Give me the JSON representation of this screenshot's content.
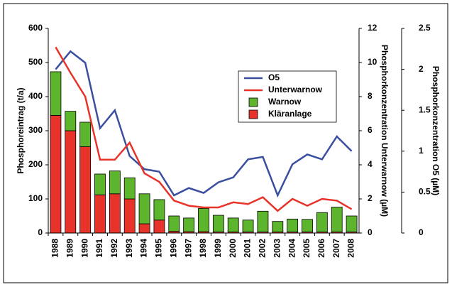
{
  "chart_data": {
    "type": "bar",
    "categories": [
      "1988",
      "1989",
      "1990",
      "1991",
      "1992",
      "1993",
      "1994",
      "1995",
      "1996",
      "1997",
      "1998",
      "1999",
      "2000",
      "2001",
      "2002",
      "2003",
      "2004",
      "2005",
      "2006",
      "2007",
      "2008"
    ],
    "ylabel": "Phosphoreintrag (t/a)",
    "y2label": "Phosphorkonzentration Unterwarnow (µM)",
    "y3label": "Phosphorkonzentration O5 (µM)",
    "ylim": [
      0,
      600
    ],
    "yticks": [
      0,
      100,
      200,
      300,
      400,
      500,
      600
    ],
    "y2lim": [
      0,
      12
    ],
    "y2ticks": [
      0,
      2,
      4,
      6,
      8,
      10,
      12
    ],
    "y3lim": [
      0,
      2.5
    ],
    "y3ticks": [
      0,
      0.5,
      1,
      1.5,
      2,
      2.5
    ],
    "series": [
      {
        "name": "O5",
        "type": "line",
        "axis": "y3",
        "color": "#3a4fa0",
        "values": [
          2.0,
          2.22,
          2.08,
          1.28,
          1.5,
          0.94,
          0.78,
          0.75,
          0.46,
          0.55,
          0.49,
          0.62,
          0.68,
          0.9,
          0.93,
          0.46,
          0.84,
          0.96,
          0.9,
          1.18,
          1.0
        ]
      },
      {
        "name": "Unterwarnow",
        "type": "line",
        "axis": "y2",
        "color": "#e8332a",
        "values": [
          10.9,
          9.4,
          8.0,
          4.3,
          4.3,
          5.3,
          3.5,
          3.0,
          1.9,
          1.6,
          1.5,
          1.5,
          1.8,
          1.7,
          2.1,
          1.3,
          2.0,
          1.6,
          2.0,
          1.9,
          1.4
        ]
      },
      {
        "name": "Warnow",
        "type": "bar",
        "axis": "y",
        "color": "#5db52e",
        "values": [
          128,
          57,
          72,
          61,
          67,
          62,
          88,
          60,
          45,
          40,
          68,
          49,
          41,
          35,
          61,
          31,
          38,
          37,
          57,
          73,
          47
        ]
      },
      {
        "name": "Kläranlage",
        "type": "bar",
        "axis": "y",
        "color": "#e8332a",
        "values": [
          345,
          300,
          253,
          112,
          115,
          100,
          27,
          38,
          5,
          4,
          4,
          3,
          3,
          3,
          3,
          3,
          3,
          3,
          3,
          3,
          3
        ]
      }
    ]
  }
}
